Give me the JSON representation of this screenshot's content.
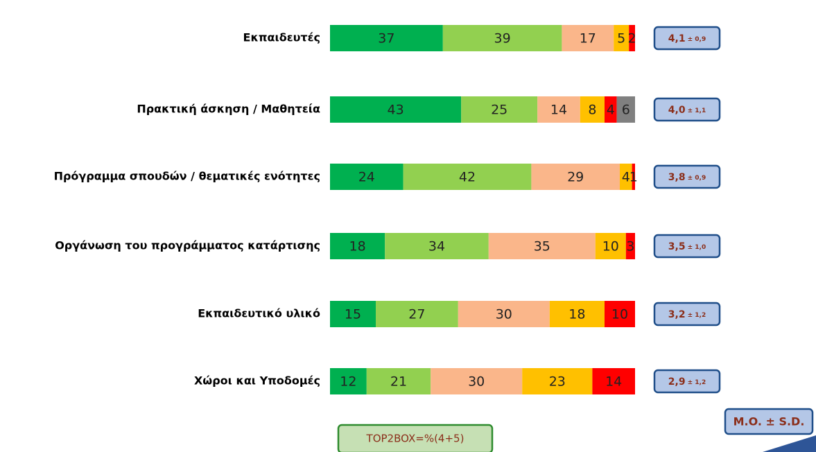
{
  "chart_data": {
    "type": "stacked-bar-horizontal",
    "categories": [
      "Εκπαιδευτές",
      "Πρακτική άσκηση / Μαθητεία",
      "Πρόγραμμα σπουδών / θεματικές ενότητες",
      "Οργάνωση του προγράμματος κατάρτισης",
      "Εκπαιδευτικό υλικό",
      "Χώροι  και Υποδομές"
    ],
    "series": [
      {
        "color": "#00b050",
        "values": [
          37,
          43,
          24,
          18,
          15,
          12
        ]
      },
      {
        "color": "#92d050",
        "values": [
          39,
          25,
          42,
          34,
          27,
          21
        ]
      },
      {
        "color": "#fab68a",
        "values": [
          17,
          14,
          29,
          35,
          30,
          30
        ]
      },
      {
        "color": "#ffc000",
        "values": [
          5,
          8,
          4,
          10,
          18,
          23
        ]
      },
      {
        "color": "#ff0000",
        "values": [
          2,
          4,
          1,
          3,
          10,
          14
        ]
      },
      {
        "color": "#808080",
        "values": [
          null,
          6,
          null,
          null,
          null,
          null
        ]
      }
    ],
    "xlim": [
      0,
      100
    ],
    "stats": [
      {
        "mean": "4,1",
        "sd": "± 0,9"
      },
      {
        "mean": "4,0",
        "sd": "± 1,1"
      },
      {
        "mean": "3,8",
        "sd": "± 0,9"
      },
      {
        "mean": "3,5",
        "sd": "± 1,0"
      },
      {
        "mean": "3,2",
        "sd": "± 1,2"
      },
      {
        "mean": "2,9",
        "sd": "± 1,2"
      }
    ],
    "stats_legend": "M.O. ± S.D.",
    "top2box_note": "TOP2BOX=%(4+5)"
  }
}
